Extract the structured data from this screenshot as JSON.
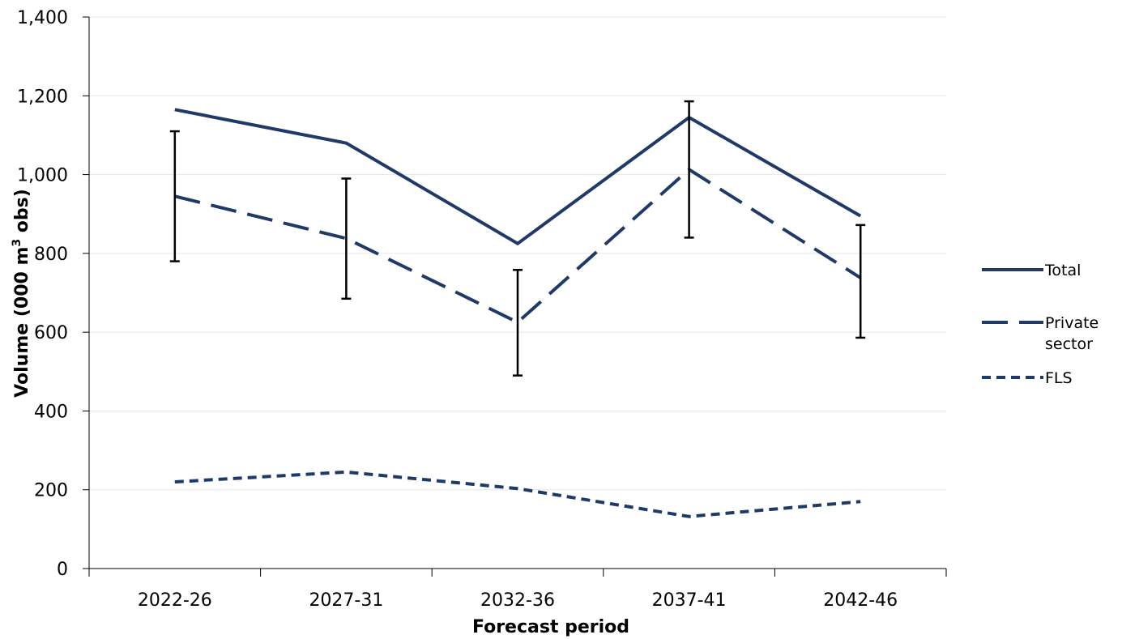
{
  "chart_data": {
    "type": "line",
    "categories": [
      "2022-26",
      "2027-31",
      "2032-36",
      "2037-41",
      "2042-46"
    ],
    "xlabel": "Forecast period",
    "ylabel": "Volume (000 m³ obs)",
    "ylabel_parts": {
      "before": "Volume (000 m",
      "sup": "3",
      "after": " obs)"
    },
    "ylim": [
      0,
      1400
    ],
    "yticks": [
      0,
      200,
      400,
      600,
      800,
      1000,
      1200,
      1400
    ],
    "ytick_labels": [
      "0",
      "200",
      "400",
      "600",
      "800",
      "1,000",
      "1,200",
      "1,400"
    ],
    "grid": "horizontal",
    "legend_position": "right",
    "series": [
      {
        "name": "Total",
        "style": "solid",
        "color": "#1f3a68",
        "values": [
          1165,
          1080,
          825,
          1145,
          895
        ]
      },
      {
        "name": "Private sector",
        "legend_lines": [
          "Private",
          "sector"
        ],
        "style": "long-dash",
        "color": "#1f3a68",
        "values": [
          945,
          838,
          625,
          1013,
          738
        ]
      },
      {
        "name": "FLS",
        "style": "short-dash",
        "color": "#1f3a68",
        "values": [
          220,
          245,
          203,
          132,
          170
        ]
      }
    ],
    "error_bars": {
      "series": "Private sector",
      "color": "#000000",
      "low": [
        780,
        685,
        490,
        840,
        586
      ],
      "high": [
        1110,
        990,
        758,
        1186,
        872
      ]
    }
  }
}
